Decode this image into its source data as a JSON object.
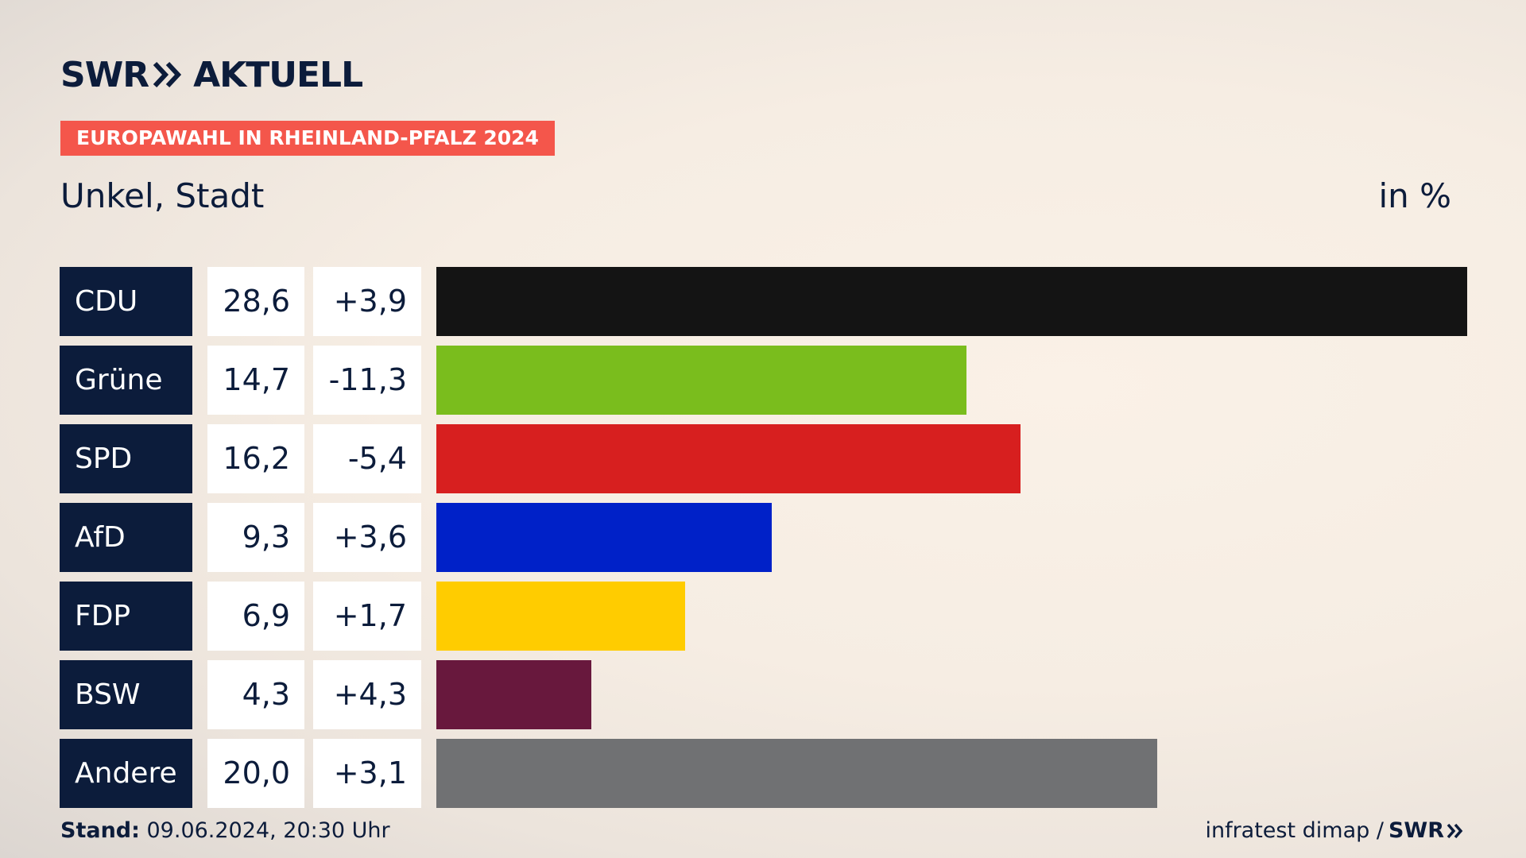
{
  "header": {
    "logo_left": "SWR",
    "logo_right": "AKTUELL",
    "banner": "EUROPAWAHL IN RHEINLAND-PFALZ 2024",
    "subtitle": "Unkel, Stadt",
    "unit": "in %"
  },
  "footer": {
    "stand_label": "Stand:",
    "stand_value": " 09.06.2024, 20:30 Uhr",
    "source": "infratest dimap /",
    "source_logo": "SWR"
  },
  "colors": {
    "navy": "#0c1c3b",
    "banner": "#f4564b"
  },
  "chart_data": {
    "type": "bar",
    "orientation": "horizontal",
    "title": "Unkel, Stadt",
    "unit": "in %",
    "categories": [
      "CDU",
      "Grüne",
      "SPD",
      "AfD",
      "FDP",
      "BSW",
      "Andere"
    ],
    "values": [
      28.6,
      14.7,
      16.2,
      9.3,
      6.9,
      4.3,
      20.0
    ],
    "value_labels": [
      "28,6",
      "14,7",
      "16,2",
      "9,3",
      "6,9",
      "4,3",
      "20,0"
    ],
    "diff_labels": [
      "+3,9",
      "-11,3",
      "-5,4",
      "+3,6",
      "+1,7",
      "+4,3",
      "+3,1"
    ],
    "colors": [
      "#141414",
      "#7abd1d",
      "#d71f1f",
      "#0021c8",
      "#ffcc00",
      "#68183d",
      "#707173"
    ],
    "xlim": [
      0,
      28.6
    ]
  }
}
